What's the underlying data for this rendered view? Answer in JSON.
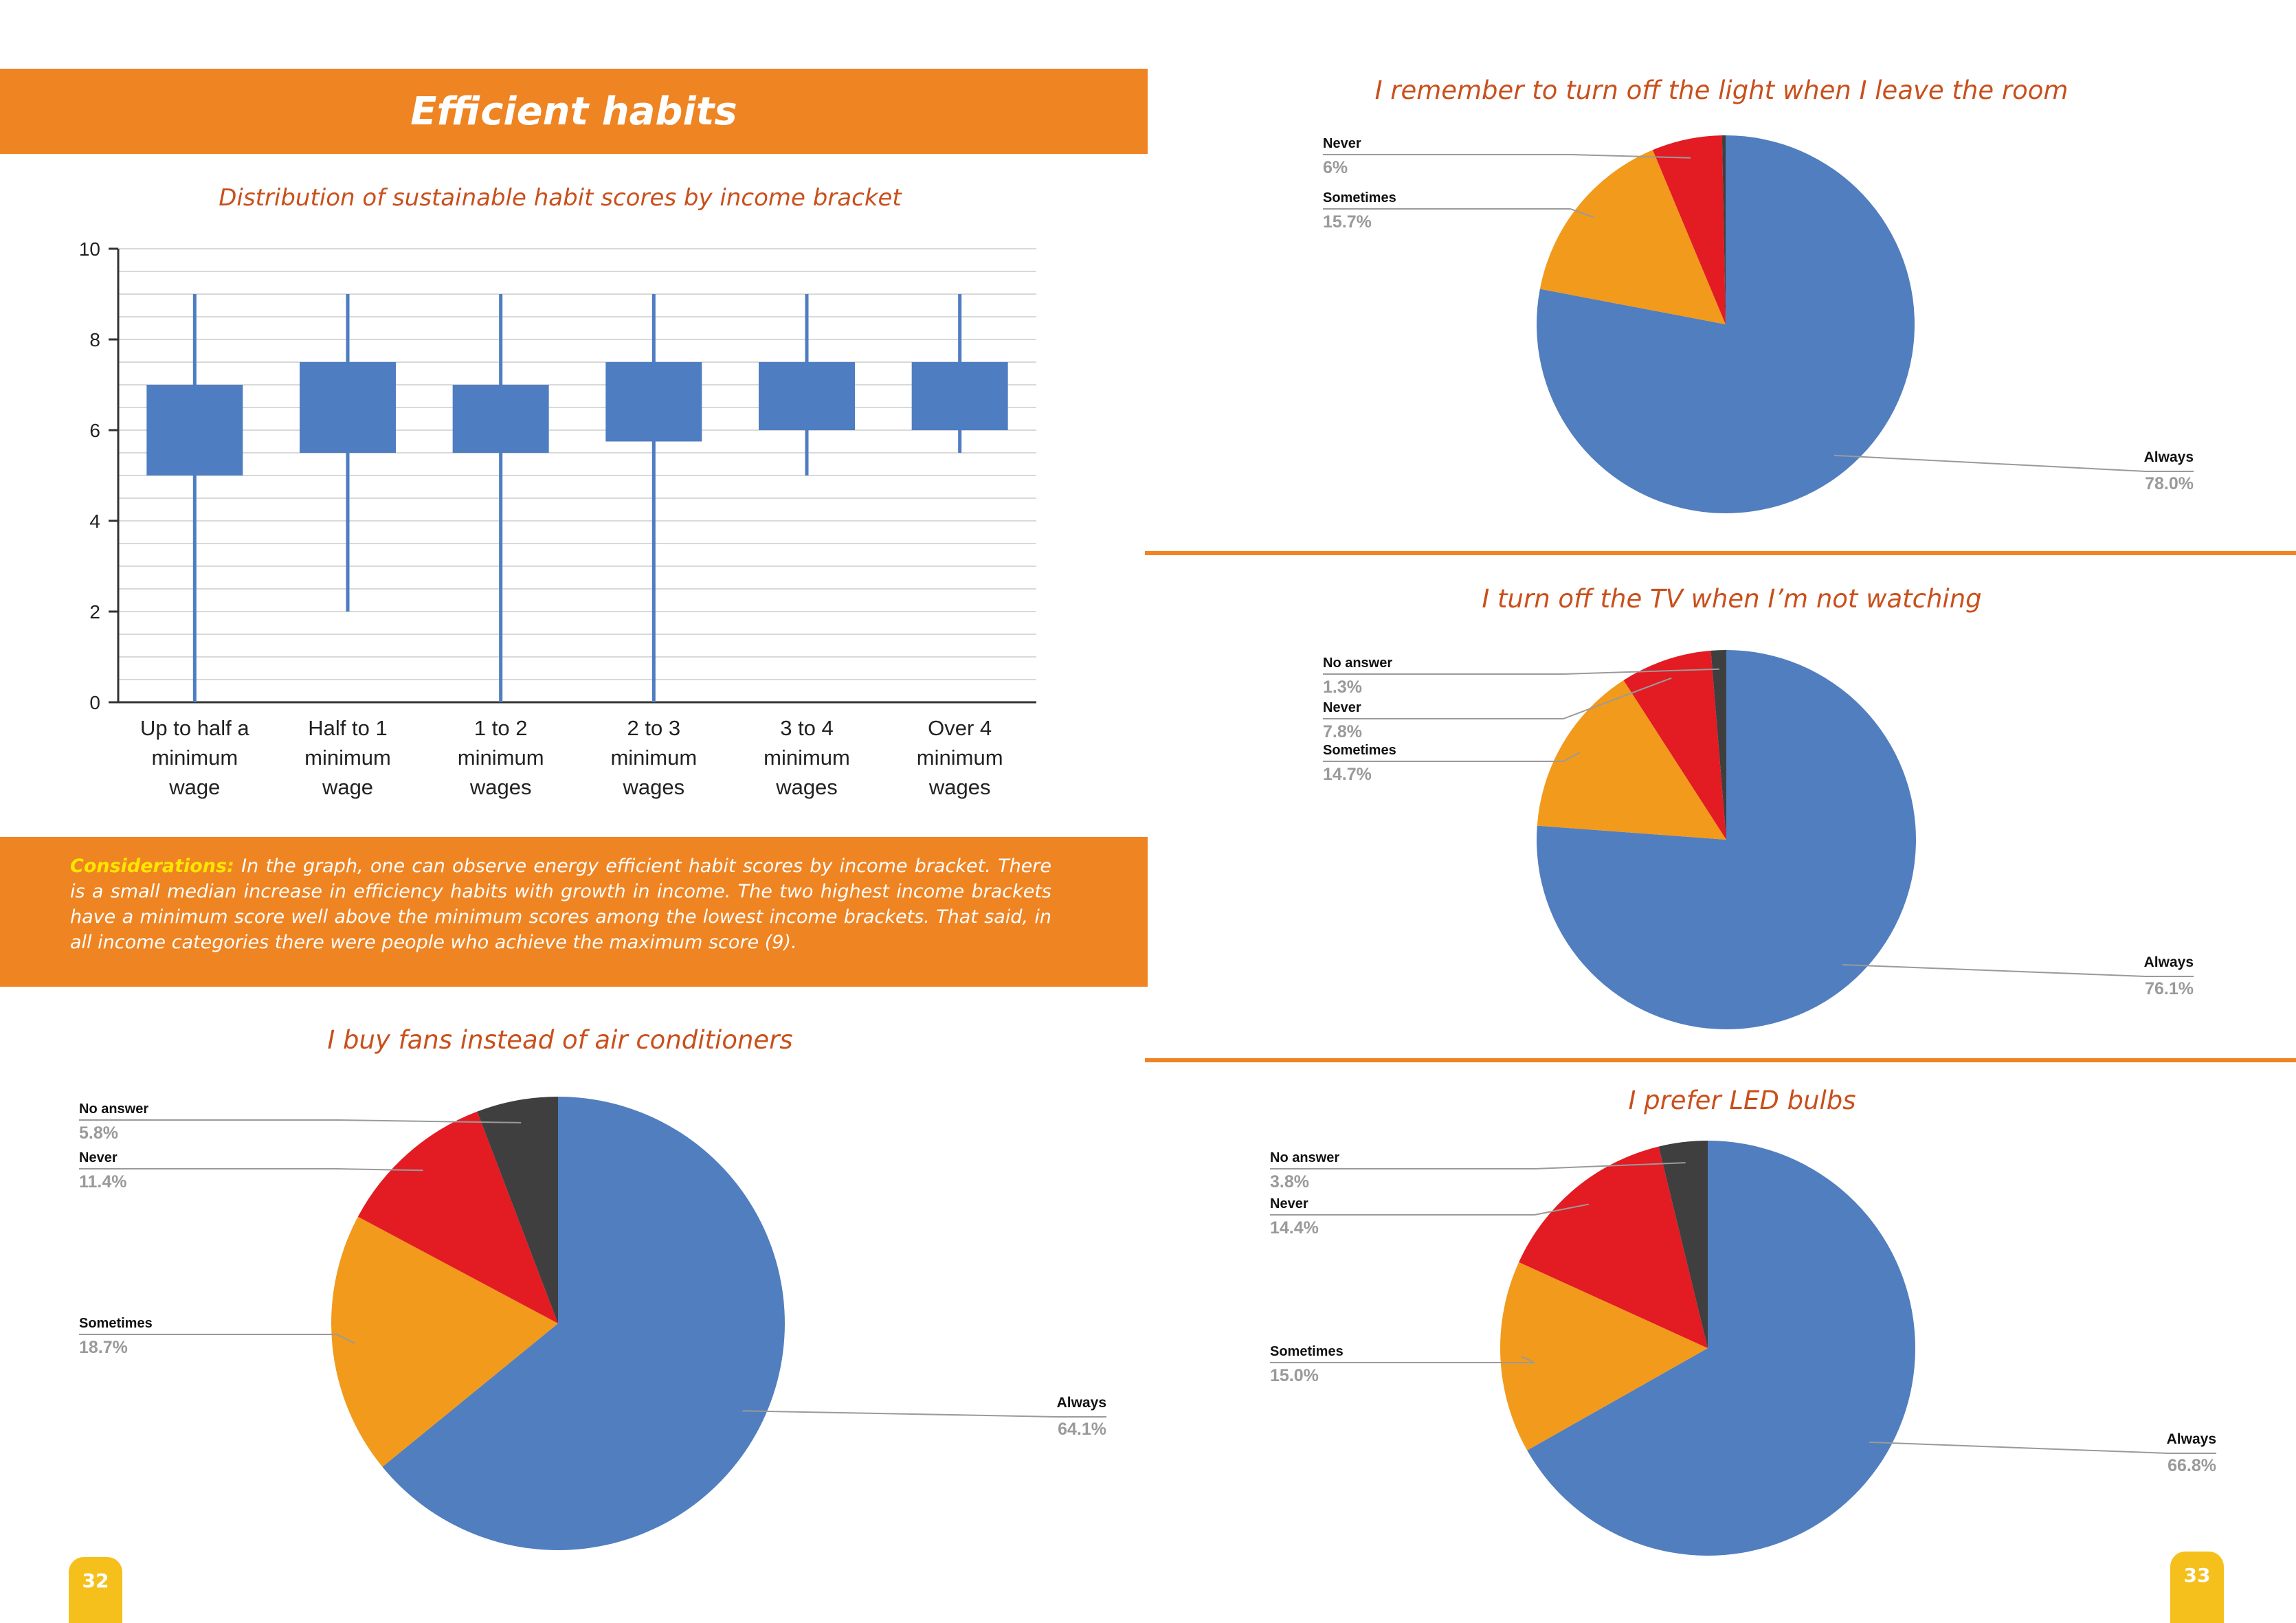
{
  "page": {
    "heading": "Efficient habits",
    "considerations_label": "Considerations:",
    "considerations_text": " In the graph, one can observe energy efficient habit scores by income bracket. There is a small median increase in efficiency habits with growth in income. The two highest income brackets have a minimum score well above the minimum scores among the lowest income brackets. That said, in all income categories there were people who achieve the maximum score (9).",
    "page_left": "32",
    "page_right": "33"
  },
  "colors": {
    "accent": "#ef8423",
    "title": "#c9501c",
    "box": "#4f7dc1",
    "always": "#517ebf",
    "sometimes": "#f29a1c",
    "never": "#e31b23",
    "no_answer": "#3f3f3f"
  },
  "chart_data": [
    {
      "type": "box",
      "title": "Distribution of sustainable habit scores by income bracket",
      "categories": [
        [
          "Up to half a",
          "minimum",
          "wage"
        ],
        [
          "Half to 1",
          "minimum",
          "wage"
        ],
        [
          "1 to 2",
          "minimum",
          "wages"
        ],
        [
          "2 to 3",
          "minimum",
          "wages"
        ],
        [
          "3 to 4",
          "minimum",
          "wages"
        ],
        [
          "Over 4",
          "minimum",
          "wages"
        ]
      ],
      "boxes": [
        {
          "min": 0,
          "q1": 5.0,
          "q3": 7.0,
          "max": 9
        },
        {
          "min": 2,
          "q1": 5.5,
          "q3": 7.5,
          "max": 9
        },
        {
          "min": 0,
          "q1": 5.5,
          "q3": 7.0,
          "max": 9
        },
        {
          "min": 0,
          "q1": 5.75,
          "q3": 7.5,
          "max": 9
        },
        {
          "min": 5,
          "q1": 6.0,
          "q3": 7.5,
          "max": 9
        },
        {
          "min": 5.5,
          "q1": 6.0,
          "q3": 7.5,
          "max": 9
        }
      ],
      "ylim": [
        0,
        10
      ],
      "yticks": [
        "0",
        "2",
        "4",
        "6",
        "8",
        "10"
      ],
      "grid": true
    },
    {
      "type": "pie",
      "title": "I buy fans instead of air conditioners",
      "slices": [
        {
          "label": "Always",
          "value": 64.1,
          "text": "64.1%",
          "color": "#517ebf"
        },
        {
          "label": "Sometimes",
          "value": 18.7,
          "text": "18.7%",
          "color": "#f29a1c"
        },
        {
          "label": "Never",
          "value": 11.4,
          "text": "11.4%",
          "color": "#e31b23"
        },
        {
          "label": "No answer",
          "value": 5.8,
          "text": "5.8%",
          "color": "#3f3f3f"
        }
      ]
    },
    {
      "type": "pie",
      "title": "I remember to turn off the light when I leave the room",
      "slices": [
        {
          "label": "Always",
          "value": 78.0,
          "text": "78.0%",
          "color": "#517ebf"
        },
        {
          "label": "Sometimes",
          "value": 15.7,
          "text": "15.7%",
          "color": "#f29a1c"
        },
        {
          "label": "Never",
          "value": 6,
          "text": "6%",
          "color": "#e31b23"
        },
        {
          "label": "",
          "value": 0.3,
          "text": "",
          "color": "#3f3f3f"
        }
      ]
    },
    {
      "type": "pie",
      "title": "I turn off the TV when I’m not watching",
      "slices": [
        {
          "label": "Always",
          "value": 76.1,
          "text": "76.1%",
          "color": "#517ebf"
        },
        {
          "label": "Sometimes",
          "value": 14.7,
          "text": "14.7%",
          "color": "#f29a1c"
        },
        {
          "label": "Never",
          "value": 7.8,
          "text": "7.8%",
          "color": "#e31b23"
        },
        {
          "label": "No answer",
          "value": 1.3,
          "text": "1.3%",
          "color": "#3f3f3f"
        }
      ]
    },
    {
      "type": "pie",
      "title": "I prefer LED bulbs",
      "slices": [
        {
          "label": "Always",
          "value": 66.8,
          "text": "66.8%",
          "color": "#517ebf"
        },
        {
          "label": "Sometimes",
          "value": 15.0,
          "text": "15.0%",
          "color": "#f29a1c"
        },
        {
          "label": "Never",
          "value": 14.4,
          "text": "14.4%",
          "color": "#e31b23"
        },
        {
          "label": "No answer",
          "value": 3.8,
          "text": "3.8%",
          "color": "#3f3f3f"
        }
      ]
    }
  ]
}
